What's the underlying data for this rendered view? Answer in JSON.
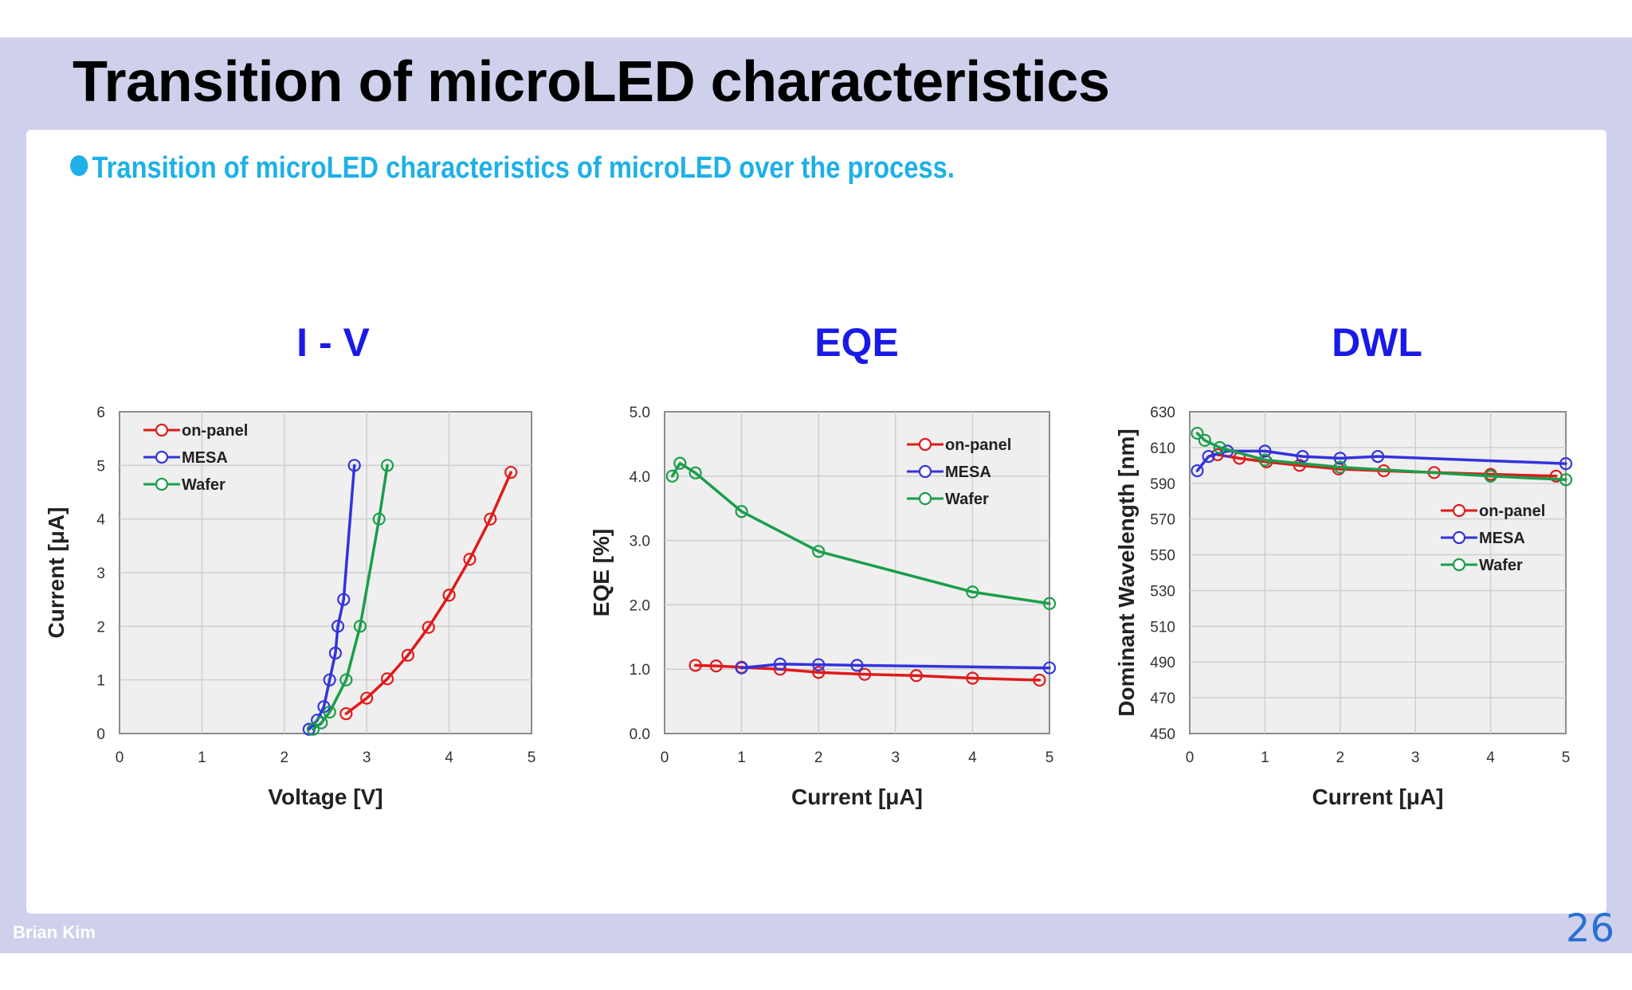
{
  "slide": {
    "title": "Transition of microLED characteristics",
    "subtitle": "Transition of microLED characteristics of microLED over the process.",
    "author": "Brian Kim",
    "page_number": "26"
  },
  "colors": {
    "on-panel": "#e01a1a",
    "MESA": "#3333dd",
    "Wafer": "#1a9e4a",
    "chart_title": "#1a1ae6"
  },
  "chart_data": [
    {
      "type": "line",
      "title": "I - V",
      "xlabel": "Voltage [V]",
      "ylabel": "Current [μA]",
      "xlim": [
        0,
        5
      ],
      "ylim": [
        0,
        6
      ],
      "xticks": [
        "0",
        "1",
        "2",
        "3",
        "4",
        "5"
      ],
      "yticks": [
        "0",
        "1",
        "2",
        "3",
        "4",
        "5",
        "6"
      ],
      "legend": "top-left",
      "grid": true,
      "series": [
        {
          "name": "on-panel",
          "x": [
            2.75,
            3.0,
            3.25,
            3.5,
            3.75,
            4.0,
            4.25,
            4.5,
            4.75
          ],
          "y": [
            0.37,
            0.66,
            1.02,
            1.46,
            1.98,
            2.58,
            3.25,
            4.0,
            4.87
          ]
        },
        {
          "name": "MESA",
          "x": [
            2.3,
            2.4,
            2.48,
            2.55,
            2.62,
            2.65,
            2.72,
            2.85
          ],
          "y": [
            0.08,
            0.25,
            0.5,
            1.0,
            1.5,
            2.0,
            2.5,
            5.0
          ]
        },
        {
          "name": "Wafer",
          "x": [
            2.35,
            2.45,
            2.55,
            2.75,
            2.92,
            3.15,
            3.25
          ],
          "y": [
            0.08,
            0.2,
            0.4,
            1.0,
            2.0,
            4.0,
            5.0
          ]
        }
      ]
    },
    {
      "type": "line",
      "title": "EQE",
      "xlabel": "Current [μA]",
      "ylabel": "EQE [%]",
      "xlim": [
        0,
        5
      ],
      "ylim": [
        0,
        5
      ],
      "xticks": [
        "0",
        "1",
        "2",
        "3",
        "4",
        "5"
      ],
      "yticks": [
        "0.0",
        "1.0",
        "2.0",
        "3.0",
        "4.0",
        "5.0"
      ],
      "legend": "top-right",
      "grid": true,
      "series": [
        {
          "name": "on-panel",
          "x": [
            0.4,
            0.67,
            1.0,
            1.5,
            2.0,
            2.6,
            3.27,
            4.0,
            4.87
          ],
          "y": [
            1.06,
            1.05,
            1.03,
            1.0,
            0.95,
            0.92,
            0.9,
            0.86,
            0.83
          ]
        },
        {
          "name": "MESA",
          "x": [
            1.0,
            1.5,
            2.0,
            2.5,
            5.0
          ],
          "y": [
            1.02,
            1.08,
            1.07,
            1.06,
            1.02
          ]
        },
        {
          "name": "Wafer",
          "x": [
            0.1,
            0.2,
            0.4,
            1.0,
            2.0,
            4.0,
            5.0
          ],
          "y": [
            4.0,
            4.2,
            4.05,
            3.45,
            2.83,
            2.2,
            2.02
          ]
        }
      ]
    },
    {
      "type": "line",
      "title": "DWL",
      "xlabel": "Current [μA]",
      "ylabel": "Dominant Wavelength [nm]",
      "xlim": [
        0,
        5
      ],
      "ylim": [
        450,
        630
      ],
      "xticks": [
        "0",
        "1",
        "2",
        "3",
        "4",
        "5"
      ],
      "yticks": [
        "450",
        "470",
        "490",
        "510",
        "530",
        "550",
        "570",
        "590",
        "610",
        "630"
      ],
      "legend": "center-right",
      "grid": true,
      "series": [
        {
          "name": "on-panel",
          "x": [
            0.37,
            0.66,
            1.02,
            1.46,
            1.98,
            2.58,
            3.25,
            4.0,
            4.87
          ],
          "y": [
            606,
            604,
            602,
            600,
            598,
            597,
            596,
            595,
            594
          ]
        },
        {
          "name": "MESA",
          "x": [
            0.1,
            0.25,
            0.5,
            1.0,
            1.5,
            2.0,
            2.5,
            5.0
          ],
          "y": [
            597,
            605,
            608,
            608,
            605,
            604,
            605,
            601
          ]
        },
        {
          "name": "Wafer",
          "x": [
            0.1,
            0.2,
            0.4,
            1.0,
            2.0,
            4.0,
            5.0
          ],
          "y": [
            618,
            614,
            610,
            603,
            599,
            594,
            592
          ]
        }
      ]
    }
  ]
}
